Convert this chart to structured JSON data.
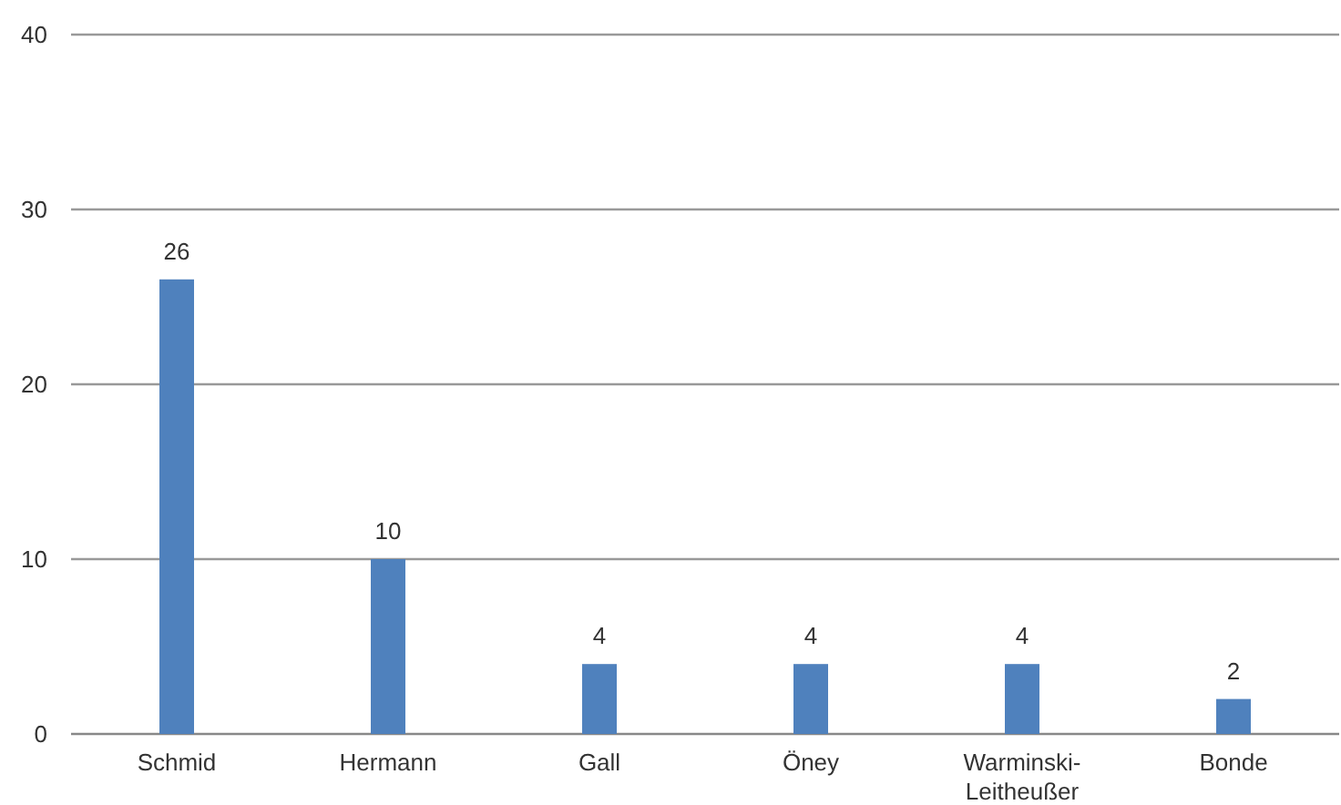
{
  "chart_data": {
    "type": "bar",
    "categories": [
      "Schmid",
      "Hermann",
      "Gall",
      "Öney",
      "Warminski-Leitheußer",
      "Bonde"
    ],
    "values": [
      26,
      10,
      4,
      4,
      4,
      2
    ],
    "color": "#4f81bd",
    "ylim": [
      0,
      40
    ],
    "yticks": [
      0,
      10,
      20,
      30,
      40
    ],
    "grid": "y",
    "data_labels": true
  }
}
